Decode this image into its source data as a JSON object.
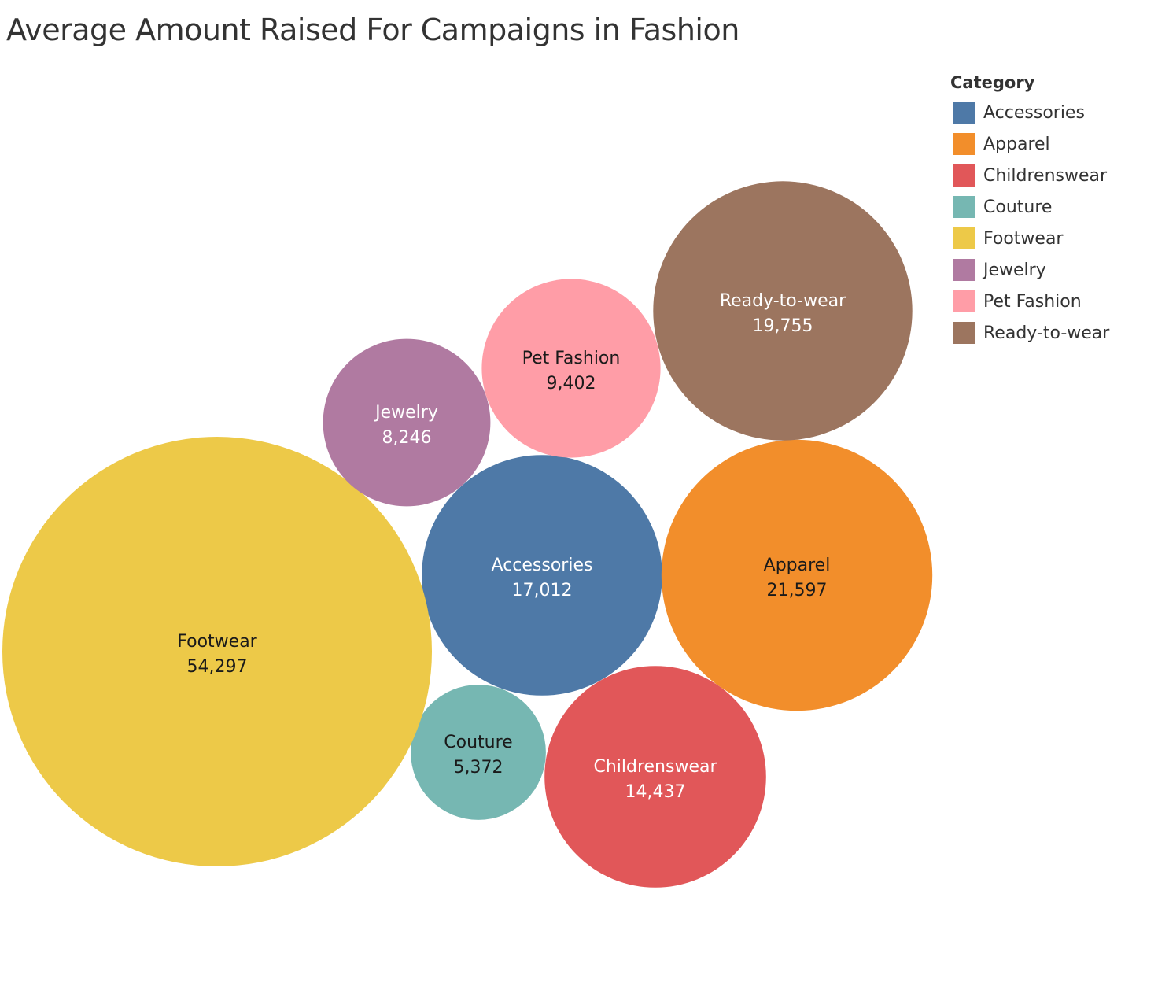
{
  "chart_data": {
    "type": "bubble",
    "title": "Average Amount Raised For Campaigns in Fashion",
    "legend": {
      "title": "Category",
      "placement": "right"
    },
    "series": [
      {
        "name": "Accessories",
        "value": 17012,
        "value_label": "17,012",
        "color": "#4e79a7",
        "label_color": "#ffffff"
      },
      {
        "name": "Apparel",
        "value": 21597,
        "value_label": "21,597",
        "color": "#f28e2b",
        "label_color": "#1a1a1a"
      },
      {
        "name": "Childrenswear",
        "value": 14437,
        "value_label": "14,437",
        "color": "#e15759",
        "label_color": "#ffffff"
      },
      {
        "name": "Couture",
        "value": 5372,
        "value_label": "5,372",
        "color": "#76b7b2",
        "label_color": "#1a1a1a"
      },
      {
        "name": "Footwear",
        "value": 54297,
        "value_label": "54,297",
        "color": "#edc948",
        "label_color": "#1a1a1a"
      },
      {
        "name": "Jewelry",
        "value": 8246,
        "value_label": "8,246",
        "color": "#b07aa1",
        "label_color": "#ffffff"
      },
      {
        "name": "Pet Fashion",
        "value": 9402,
        "value_label": "9,402",
        "color": "#ff9da7",
        "label_color": "#1a1a1a"
      },
      {
        "name": "Ready-to-wear",
        "value": 19755,
        "value_label": "19,755",
        "color": "#9c755f",
        "label_color": "#ffffff"
      }
    ]
  }
}
